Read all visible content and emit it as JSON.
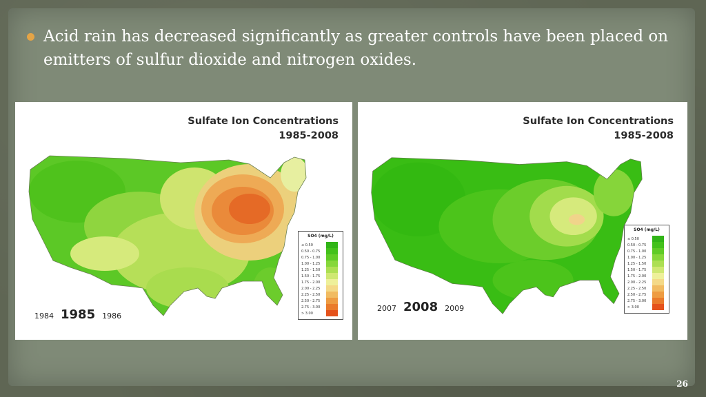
{
  "slide": {
    "bullet_text": "Acid rain has decreased significantly as greater controls have been placed on emitters of sulfur dioxide and nitrogen oxides.",
    "page_number": "26"
  },
  "colors": {
    "bullet": "#e4a446",
    "low": "#3fc20f",
    "high": "#e8521b"
  },
  "maps": [
    {
      "title_line1": "Sulfate Ion Concentrations",
      "title_line2": "1985-2008",
      "year_prev": "1984",
      "year_main": "1985",
      "year_next": "1986"
    },
    {
      "title_line1": "Sulfate Ion Concentrations",
      "title_line2": "1985-2008",
      "year_prev": "2007",
      "year_main": "2008",
      "year_next": "2009"
    }
  ],
  "legend": {
    "title": "SO4 (mg/L)",
    "items": [
      {
        "label": "≤ 0.50",
        "color": "#31b417"
      },
      {
        "label": "0.50 - 0.75",
        "color": "#43c11b"
      },
      {
        "label": "0.75 - 1.00",
        "color": "#5fcb26"
      },
      {
        "label": "1.00 - 1.25",
        "color": "#86d73a"
      },
      {
        "label": "1.25 - 1.50",
        "color": "#acdf52"
      },
      {
        "label": "1.50 - 1.75",
        "color": "#cfe872"
      },
      {
        "label": "1.75 - 2.00",
        "color": "#eef09a"
      },
      {
        "label": "2.00 - 2.25",
        "color": "#f4d987"
      },
      {
        "label": "2.25 - 2.50",
        "color": "#f1bb61"
      },
      {
        "label": "2.50 - 2.75",
        "color": "#ee9c42"
      },
      {
        "label": "2.75 - 3.00",
        "color": "#ea7b2b"
      },
      {
        "label": "> 3.00",
        "color": "#e5521b"
      }
    ]
  }
}
